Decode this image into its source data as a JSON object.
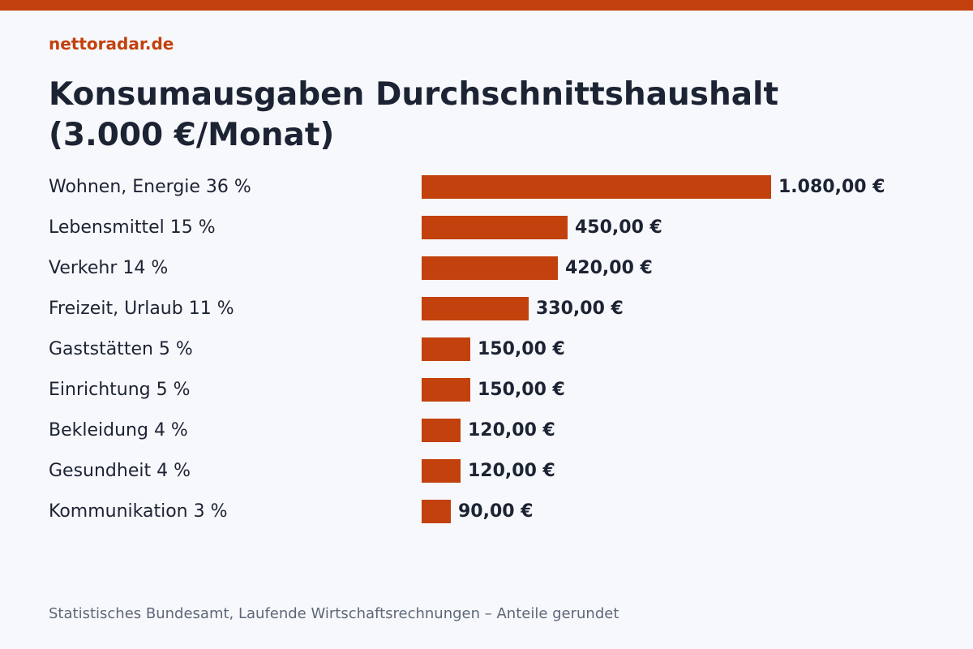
{
  "colors": {
    "accent": "#c2410c",
    "background": "#f7f8fc",
    "text": "#1c2333",
    "muted": "#5d6878"
  },
  "brand": "nettoradar.de",
  "title_line1": "Konsumausgaben Durchschnittshaushalt",
  "title_line2": "(3.000 €/Monat)",
  "source": "Statistisches Bundesamt, Laufende Wirtschaftsrechnungen – Anteile gerundet",
  "chart_data": {
    "type": "bar",
    "orientation": "horizontal",
    "categories": [
      "Wohnen, Energie 36 %",
      "Lebensmittel 15 %",
      "Verkehr 14 %",
      "Freizeit, Urlaub 11 %",
      "Gaststätten 5 %",
      "Einrichtung 5 %",
      "Bekleidung 4 %",
      "Gesundheit 4 %",
      "Kommunikation 3 %"
    ],
    "values": [
      1080,
      450,
      420,
      330,
      150,
      150,
      120,
      120,
      90
    ],
    "value_labels": [
      "1.080,00 €",
      "450,00 €",
      "420,00 €",
      "330,00 €",
      "150,00 €",
      "150,00 €",
      "120,00 €",
      "120,00 €",
      "90,00 €"
    ],
    "xlim": [
      0,
      1080
    ],
    "grid": false,
    "legend": "none"
  }
}
